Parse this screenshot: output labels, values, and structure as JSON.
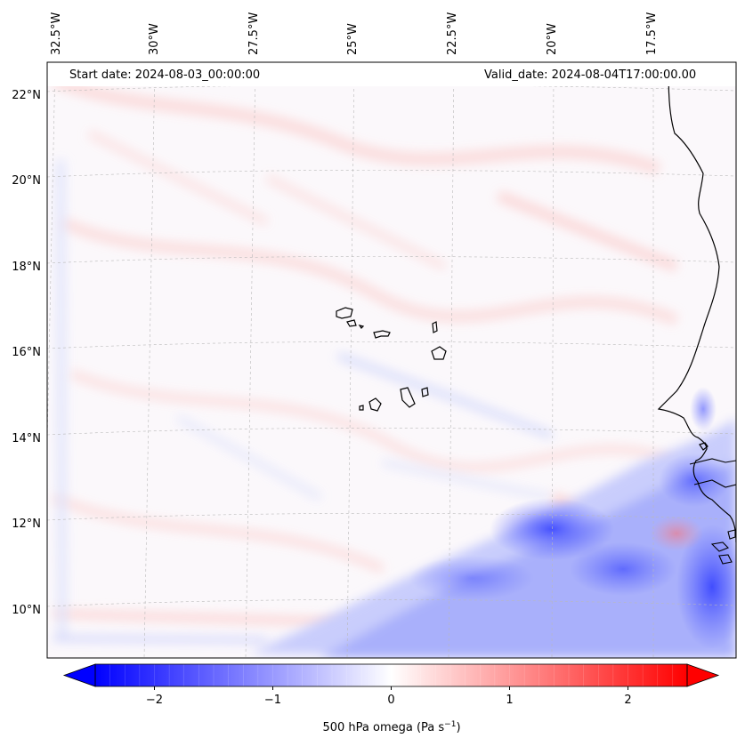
{
  "map": {
    "start_label": "Start date: 2024-08-03_00:00:00",
    "valid_label": "Valid_date: 2024-08-04T17:00:00.00",
    "lon_labels": [
      "32.5°W",
      "30°W",
      "27.5°W",
      "25°W",
      "22.5°W",
      "20°W",
      "17.5°W"
    ],
    "lat_labels": [
      "22°N",
      "20°N",
      "18°N",
      "16°N",
      "14°N",
      "12°N",
      "10°N"
    ],
    "colorbar": {
      "ticks": [
        "−2",
        "−1",
        "0",
        "1",
        "2"
      ],
      "tick_values": [
        -2,
        -1,
        0,
        1,
        2
      ],
      "range": [
        -2.5,
        2.5
      ],
      "label_main": "500 hPa omega (Pa s",
      "label_exp": "−1",
      "label_end": ")",
      "low_color": "#0000ff",
      "high_color": "#ff0000"
    },
    "islands": [
      "Santo Antão",
      "São Vicente",
      "Santa Luzia",
      "São Nicolau",
      "Sal",
      "Boa Vista",
      "Maio",
      "Santiago",
      "Fogo",
      "Brava"
    ]
  }
}
